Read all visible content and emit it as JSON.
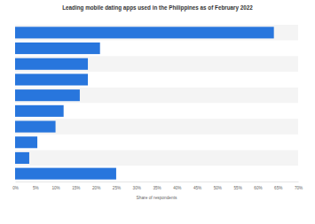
{
  "chart_data": {
    "type": "bar",
    "title": "Leading mobile dating apps used in the Philippines as of February 2022",
    "orientation": "horizontal",
    "categories": [
      null,
      null,
      null,
      null,
      null,
      null,
      null,
      null,
      null,
      null
    ],
    "values": [
      64,
      21,
      18,
      18,
      16,
      12,
      10,
      5.5,
      3.5,
      25
    ],
    "color": "#2876dd",
    "xlabel": "Share of respondents",
    "xlim": [
      0,
      70
    ],
    "xticks": [
      {
        "value": 0,
        "label": "0%"
      },
      {
        "value": 5,
        "label": "5%"
      },
      {
        "value": 10,
        "label": "10%"
      },
      {
        "value": 15,
        "label": "15%"
      },
      {
        "value": 20,
        "label": "20%"
      },
      {
        "value": 25,
        "label": "25%"
      },
      {
        "value": 30,
        "label": "30%"
      },
      {
        "value": 35,
        "label": "35%"
      },
      {
        "value": 40,
        "label": "40%"
      },
      {
        "value": 45,
        "label": "45%"
      },
      {
        "value": 50,
        "label": "50%"
      },
      {
        "value": 55,
        "label": "55%"
      },
      {
        "value": 60,
        "label": "60%"
      },
      {
        "value": 65,
        "label": "65%"
      },
      {
        "value": 70,
        "label": "70%"
      }
    ],
    "grid": false,
    "tick_labels": "x"
  }
}
